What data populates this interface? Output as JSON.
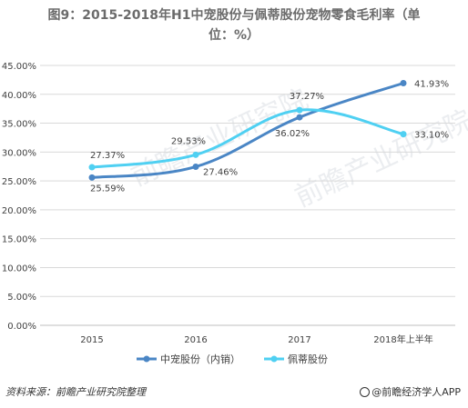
{
  "title_line1": "图9：2015-2018年H1中宠股份与佩蒂股份宠物零食毛利率（单",
  "title_line2": "位：%）",
  "source": "资料来源：前瞻产业研究院整理",
  "brand": "@前瞻经济学人APP",
  "watermark": "前瞻产业研究院",
  "chart_data": {
    "type": "line",
    "categories": [
      "2015",
      "2016",
      "2017",
      "2018年上半年"
    ],
    "yticks": [
      "0.00%",
      "5.00%",
      "10.00%",
      "15.00%",
      "20.00%",
      "25.00%",
      "30.00%",
      "35.00%",
      "40.00%",
      "45.00%"
    ],
    "ylim": [
      0,
      45
    ],
    "grid": true,
    "legend_position": "bottom",
    "series": [
      {
        "name": "中宠股份（内销）",
        "values": [
          25.59,
          27.46,
          36.02,
          41.93
        ],
        "labels": [
          "25.59%",
          "27.46%",
          "36.02%",
          "41.93%"
        ],
        "color": "#4a86c5"
      },
      {
        "name": "佩蒂股份",
        "values": [
          27.37,
          29.53,
          37.27,
          33.1
        ],
        "labels": [
          "27.37%",
          "29.53%",
          "37.27%",
          "33.10%"
        ],
        "color": "#4fd0f2"
      }
    ]
  }
}
